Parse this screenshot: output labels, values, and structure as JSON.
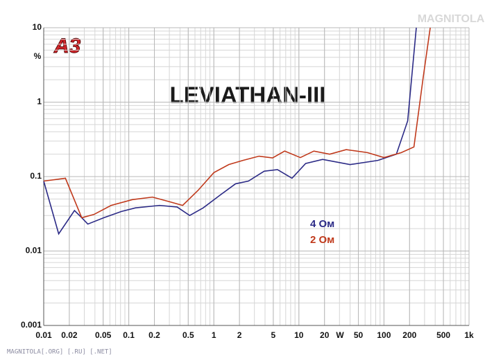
{
  "chart_data": {
    "type": "line",
    "title": "LEVIATHAN-III",
    "logo": "A3",
    "watermark": "MAGNITOLA",
    "footer": "MAGNITOLA[.ORG] [.RU] [.NET]",
    "x_label": "W",
    "y_label": "%",
    "log_x": true,
    "log_y": true,
    "grid": true,
    "minor_grid": true,
    "xlim": [
      0.01,
      1000
    ],
    "ylim": [
      0.001,
      10
    ],
    "xticks": [
      0.01,
      0.02,
      0.05,
      0.1,
      0.2,
      0.5,
      1,
      2,
      5,
      10,
      20,
      50,
      100,
      200,
      500,
      {
        "value": 1000,
        "label": "1k"
      }
    ],
    "yticks": [
      0.001,
      0.01,
      0.1,
      1,
      10
    ],
    "series": [
      {
        "name": "4 Ом",
        "color": "#2b2a86",
        "x": [
          0.01,
          0.015,
          0.023,
          0.028,
          0.033,
          0.051,
          0.082,
          0.12,
          0.23,
          0.37,
          0.52,
          0.75,
          1.2,
          1.8,
          2.55,
          3.9,
          5.6,
          8.3,
          12,
          19,
          40,
          85,
          140,
          190,
          240
        ],
        "values": [
          0.087,
          0.017,
          0.035,
          0.028,
          0.023,
          0.028,
          0.034,
          0.038,
          0.041,
          0.039,
          0.03,
          0.038,
          0.057,
          0.08,
          0.087,
          0.118,
          0.124,
          0.095,
          0.15,
          0.17,
          0.145,
          0.165,
          0.2,
          0.56,
          10
        ]
      },
      {
        "name": "2 Ом",
        "color": "#c0391b",
        "x": [
          0.01,
          0.018,
          0.028,
          0.039,
          0.062,
          0.11,
          0.19,
          0.3,
          0.43,
          0.65,
          1,
          1.5,
          2.2,
          3.4,
          4.9,
          6.8,
          10.4,
          15,
          23,
          36,
          64,
          100,
          160,
          225,
          290,
          350
        ],
        "values": [
          0.087,
          0.095,
          0.028,
          0.031,
          0.041,
          0.049,
          0.053,
          0.046,
          0.041,
          0.065,
          0.113,
          0.145,
          0.165,
          0.188,
          0.178,
          0.22,
          0.18,
          0.22,
          0.2,
          0.23,
          0.21,
          0.18,
          0.21,
          0.25,
          2.2,
          10
        ]
      }
    ]
  }
}
